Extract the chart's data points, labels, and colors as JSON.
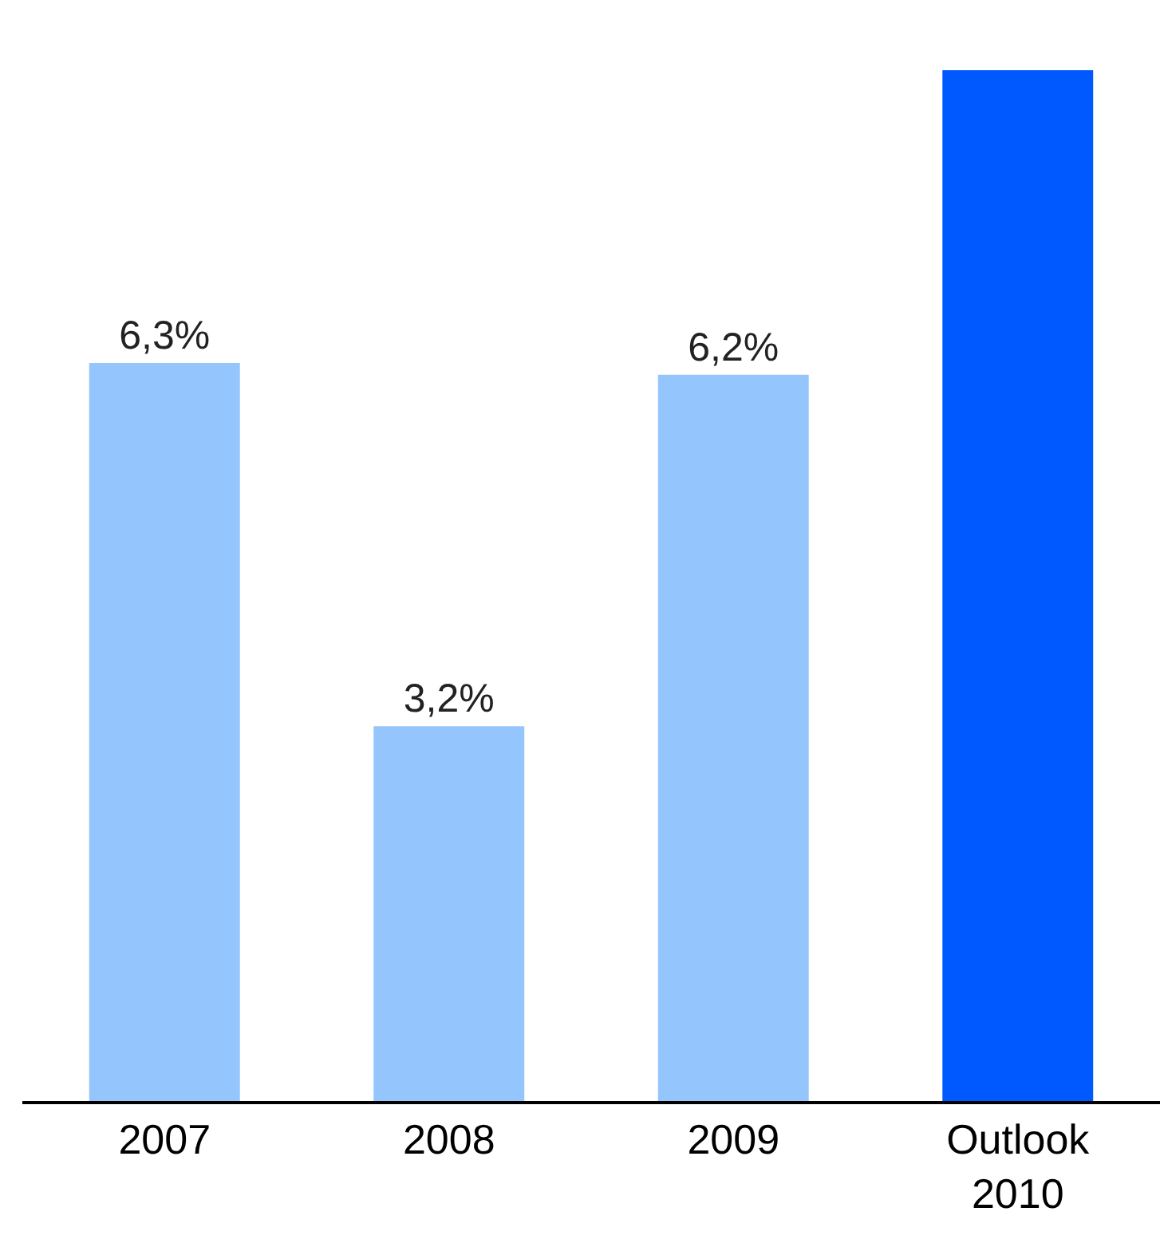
{
  "chart_data": {
    "type": "bar",
    "categories": [
      "2007",
      "2008",
      "2009",
      "Outlook\n2010"
    ],
    "values": [
      6.3,
      3.2,
      6.2,
      8.8
    ],
    "value_labels": [
      "6,3%",
      "3,2%",
      "6,2%",
      null
    ],
    "colors": [
      "#94c6fd",
      "#94c6fd",
      "#94c6fd",
      "#0059ff"
    ],
    "grid": false,
    "legend": false
  }
}
